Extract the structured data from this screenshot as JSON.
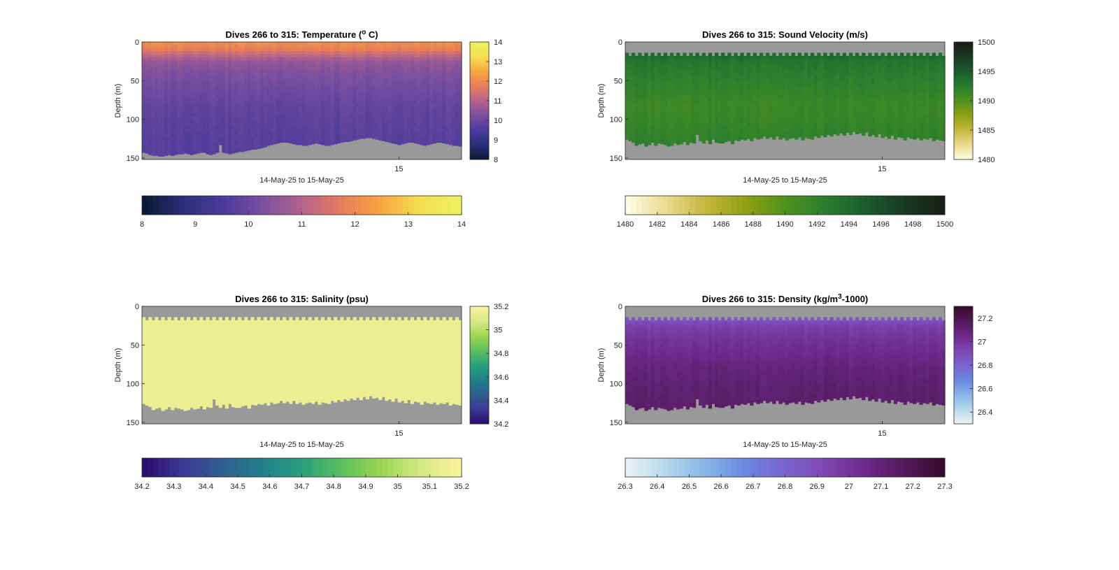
{
  "chart_data": [
    {
      "id": "temperature",
      "type": "heatmap",
      "title": "Dives 266 to 315: Temperature (",
      "title_sup": "o",
      "title_tail": " C)",
      "xlabel": "14-May-25 to 15-May-25",
      "ylabel": "Depth (m)",
      "x_ticks": [
        "15"
      ],
      "y_ticks": [
        "0",
        "50",
        "100",
        "150"
      ],
      "ylim": [
        0,
        152
      ],
      "y_reversed": true,
      "clim": [
        8,
        14
      ],
      "colorbar_ticks": [
        "14",
        "13",
        "12",
        "11",
        "10",
        "9",
        "8"
      ],
      "bottom_colorbar_ticks": [
        "8",
        "9",
        "10",
        "11",
        "12",
        "13",
        "14"
      ],
      "colormap": [
        "#0a1a36",
        "#2a2f7a",
        "#4a3a9c",
        "#7b4f9f",
        "#b2628c",
        "#e67c5c",
        "#f7a540",
        "#f4df4e",
        "#eef060"
      ],
      "profile": {
        "depths_m": [
          0,
          8,
          16,
          25,
          40,
          60,
          80,
          100,
          130,
          150
        ],
        "values": [
          12.1,
          11.9,
          11.3,
          10.6,
          10.3,
          10.1,
          9.9,
          9.8,
          9.7,
          9.7
        ]
      },
      "missing_color": "#999999",
      "surface_gap_m": 0,
      "bottom_depth_m": [
        143,
        144,
        146,
        147,
        147,
        148,
        148,
        147,
        146,
        147,
        146,
        145,
        145,
        144,
        145,
        146,
        145,
        144,
        143,
        143,
        145,
        146,
        145,
        143,
        133,
        143,
        144,
        145,
        144,
        143,
        142,
        142,
        141,
        140,
        139,
        139,
        138,
        137,
        136,
        134,
        133,
        132,
        131,
        130,
        130,
        130,
        131,
        132,
        133,
        133,
        134,
        134,
        133,
        132,
        131,
        132,
        133,
        134,
        134,
        133,
        132,
        131,
        130,
        129,
        129,
        128,
        127,
        126,
        125,
        125,
        124,
        124,
        125,
        126,
        127,
        128,
        129,
        130,
        131,
        132,
        133,
        132,
        131,
        130,
        130,
        131,
        132,
        133,
        134,
        133,
        132,
        131,
        130,
        130,
        131,
        132,
        133,
        134,
        134,
        135
      ]
    },
    {
      "id": "sound-velocity",
      "type": "heatmap",
      "title": "Dives 266 to 315: Sound Velocity (m/s)",
      "xlabel": "14-May-25 to 15-May-25",
      "ylabel": "Depth (m)",
      "x_ticks": [
        "15"
      ],
      "y_ticks": [
        "0",
        "50",
        "100",
        "150"
      ],
      "ylim": [
        0,
        152
      ],
      "y_reversed": true,
      "clim": [
        1480,
        1500
      ],
      "colorbar_ticks": [
        "1500",
        "1495",
        "1490",
        "1485",
        "1480"
      ],
      "bottom_colorbar_ticks": [
        "1480",
        "1482",
        "1484",
        "1486",
        "1488",
        "1490",
        "1492",
        "1494",
        "1496",
        "1498",
        "1500"
      ],
      "colormap": [
        "#fffbe0",
        "#e9d98c",
        "#c4b63c",
        "#8fa012",
        "#4f921e",
        "#2a7e2e",
        "#1a5e2e",
        "#1a3a22",
        "#162016"
      ],
      "profile": {
        "depths_m": [
          0,
          8,
          16,
          25,
          40,
          60,
          80,
          100,
          130,
          150
        ],
        "values": [
          1495.0,
          1495.0,
          1494.2,
          1493.2,
          1492.6,
          1492.0,
          1491.4,
          1491.6,
          1492.2,
          1492.6
        ]
      },
      "missing_color": "#999999",
      "surface_gap_m": 14,
      "bottom_depth_m": [
        126,
        128,
        130,
        134,
        132,
        131,
        135,
        133,
        130,
        134,
        131,
        132,
        133,
        135,
        134,
        131,
        133,
        132,
        129,
        133,
        130,
        131,
        120,
        128,
        131,
        127,
        132,
        126,
        130,
        131,
        131,
        129,
        128,
        132,
        127,
        128,
        126,
        127,
        125,
        128,
        124,
        126,
        125,
        122,
        125,
        123,
        126,
        122,
        126,
        124,
        127,
        125,
        124,
        126,
        123,
        127,
        124,
        125,
        126,
        122,
        124,
        121,
        123,
        120,
        122,
        119,
        121,
        118,
        121,
        117,
        120,
        116,
        119,
        118,
        121,
        117,
        122,
        120,
        123,
        119,
        124,
        122,
        125,
        121,
        126,
        123,
        124,
        127,
        123,
        125,
        126,
        124,
        127,
        125,
        126,
        124,
        128,
        126,
        127,
        128
      ]
    },
    {
      "id": "salinity",
      "type": "heatmap",
      "title": "Dives 266 to 315: Salinity (psu)",
      "xlabel": "14-May-25 to 15-May-25",
      "ylabel": "Depth (m)",
      "x_ticks": [
        "15"
      ],
      "y_ticks": [
        "0",
        "50",
        "100",
        "150"
      ],
      "ylim": [
        0,
        152
      ],
      "y_reversed": true,
      "clim": [
        34.2,
        35.2
      ],
      "colorbar_ticks": [
        "35.2",
        "35",
        "34.8",
        "34.6",
        "34.4",
        "34.2"
      ],
      "bottom_colorbar_ticks": [
        "34.2",
        "34.3",
        "34.4",
        "34.5",
        "34.6",
        "34.7",
        "34.8",
        "34.9",
        "35",
        "35.1",
        "35.2"
      ],
      "colormap": [
        "#2c0d6e",
        "#3b3a96",
        "#2f5f8e",
        "#20808a",
        "#27a07c",
        "#5bbf60",
        "#9ad650",
        "#d4e884",
        "#fbf29c"
      ],
      "profile": {
        "depths_m": [
          0,
          150
        ],
        "values": [
          35.15,
          35.15
        ]
      },
      "missing_color": "#999999",
      "surface_gap_m": 14,
      "bottom_depth_m": [
        126,
        128,
        130,
        134,
        132,
        131,
        135,
        133,
        130,
        134,
        131,
        132,
        133,
        135,
        134,
        131,
        133,
        132,
        129,
        133,
        130,
        131,
        120,
        128,
        131,
        127,
        132,
        126,
        130,
        131,
        131,
        129,
        128,
        132,
        127,
        128,
        126,
        127,
        125,
        128,
        124,
        126,
        125,
        122,
        125,
        123,
        126,
        122,
        126,
        124,
        127,
        125,
        124,
        126,
        123,
        127,
        124,
        125,
        126,
        122,
        124,
        121,
        123,
        120,
        122,
        119,
        121,
        118,
        121,
        117,
        120,
        116,
        119,
        118,
        121,
        117,
        122,
        120,
        123,
        119,
        124,
        122,
        125,
        121,
        126,
        123,
        124,
        127,
        123,
        125,
        126,
        124,
        127,
        125,
        126,
        124,
        128,
        126,
        127,
        128
      ]
    },
    {
      "id": "density",
      "type": "heatmap",
      "title": "Dives 266 to 315: Density (kg/m",
      "title_sup": "3",
      "title_tail": "-1000)",
      "xlabel": "14-May-25 to 15-May-25",
      "ylabel": "Depth (m)",
      "x_ticks": [
        "15"
      ],
      "y_ticks": [
        "0",
        "50",
        "100",
        "150"
      ],
      "ylim": [
        0,
        152
      ],
      "y_reversed": true,
      "clim": [
        26.3,
        27.3
      ],
      "colorbar_ticks": [
        "27.2",
        "27",
        "26.8",
        "26.6",
        "26.4"
      ],
      "bottom_colorbar_ticks": [
        "26.3",
        "26.4",
        "26.5",
        "26.6",
        "26.7",
        "26.8",
        "26.9",
        "27",
        "27.1",
        "27.2",
        "27.3"
      ],
      "colormap": [
        "#e8f2f4",
        "#b4d8ec",
        "#86b4e6",
        "#6a86e0",
        "#7a64d0",
        "#7e46b2",
        "#6e2a8c",
        "#541a5c",
        "#3a0a2c"
      ],
      "profile": {
        "depths_m": [
          0,
          8,
          16,
          25,
          40,
          60,
          80,
          100,
          130,
          150
        ],
        "values": [
          26.8,
          26.8,
          26.85,
          26.95,
          27.0,
          27.05,
          27.1,
          27.12,
          27.14,
          27.15
        ]
      },
      "missing_color": "#999999",
      "surface_gap_m": 14,
      "bottom_depth_m": [
        126,
        128,
        130,
        134,
        132,
        131,
        135,
        133,
        130,
        134,
        131,
        132,
        133,
        135,
        134,
        131,
        133,
        132,
        129,
        133,
        130,
        131,
        120,
        128,
        131,
        127,
        132,
        126,
        130,
        131,
        131,
        129,
        128,
        132,
        127,
        128,
        126,
        127,
        125,
        128,
        124,
        126,
        125,
        122,
        125,
        123,
        126,
        122,
        126,
        124,
        127,
        125,
        124,
        126,
        123,
        127,
        124,
        125,
        126,
        122,
        124,
        121,
        123,
        120,
        122,
        119,
        121,
        118,
        121,
        117,
        120,
        116,
        119,
        118,
        121,
        117,
        122,
        120,
        123,
        119,
        124,
        122,
        125,
        121,
        126,
        123,
        124,
        127,
        123,
        125,
        126,
        124,
        127,
        125,
        126,
        124,
        128,
        126,
        127,
        128
      ]
    }
  ]
}
